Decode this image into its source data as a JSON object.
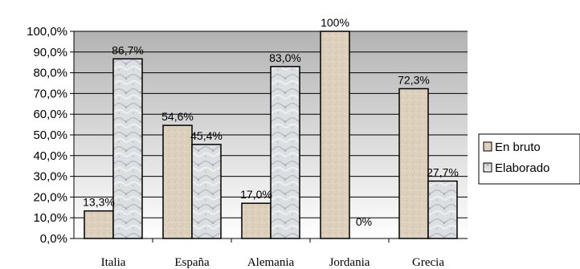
{
  "chart_data": {
    "type": "bar",
    "categories": [
      "Italia",
      "España",
      "Alemania",
      "Jordania",
      "Grecia"
    ],
    "series": [
      {
        "name": "En bruto",
        "values": [
          13.3,
          54.6,
          17.0,
          100,
          72.3
        ],
        "labels": [
          "13,3%",
          "54,6%",
          "17,0%",
          "100%",
          "72,3%"
        ],
        "color": "#ddd0bd"
      },
      {
        "name": "Elaborado",
        "values": [
          86.7,
          45.4,
          83.0,
          0,
          27.7
        ],
        "labels": [
          "86,7%",
          "45,4%",
          "83,0%",
          "0%",
          "27,7%"
        ],
        "color": "#d5d9dd"
      }
    ],
    "ylim": [
      0,
      100
    ],
    "yticks": [
      "0,0%",
      "10,0%",
      "20,0%",
      "30,0%",
      "40,0%",
      "50,0%",
      "60,0%",
      "70,0%",
      "80,0%",
      "90,0%",
      "100,0%"
    ],
    "grid": true,
    "legend": "right",
    "plot_background": "gradient gray",
    "title": "",
    "xlabel": "",
    "ylabel": ""
  }
}
